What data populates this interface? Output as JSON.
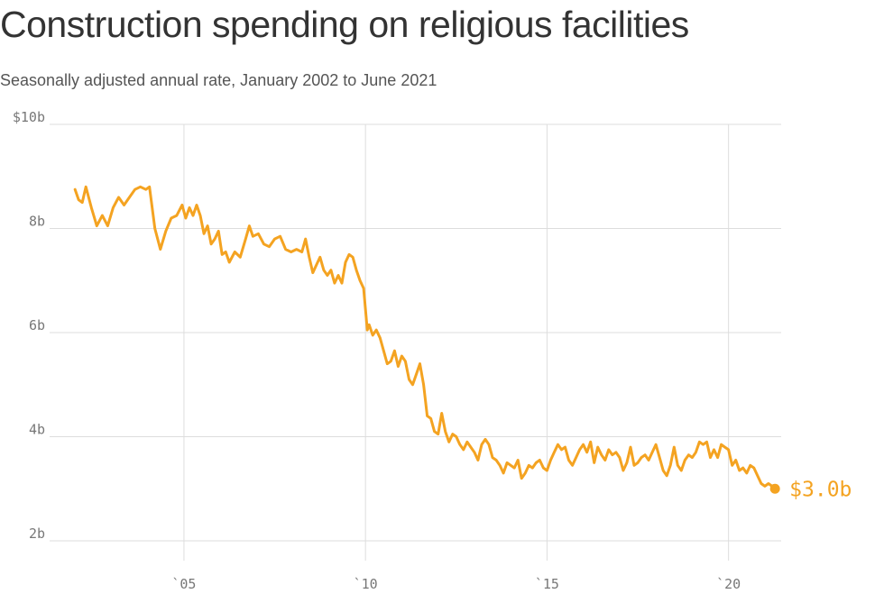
{
  "title": "Construction spending on religious facilities",
  "subtitle": "Seasonally adjusted annual rate, January 2002 to June 2021",
  "colors": {
    "line": "#f4a321",
    "grid": "#dddddd",
    "text": "#333333",
    "tick": "#777777"
  },
  "chart_data": {
    "type": "line",
    "title": "Construction spending on religious facilities",
    "subtitle": "Seasonally adjusted annual rate, January 2002 to June 2021",
    "xlabel": "",
    "ylabel": "",
    "xlim": [
      2001.3,
      2021.45
    ],
    "ylim": [
      1.8,
      10
    ],
    "y_ticks": [
      {
        "value": 10,
        "label": "$10b"
      },
      {
        "value": 8,
        "label": "8b"
      },
      {
        "value": 6,
        "label": "6b"
      },
      {
        "value": 4,
        "label": "4b"
      },
      {
        "value": 2,
        "label": "2b"
      }
    ],
    "x_ticks": [
      {
        "value": 2005,
        "label": "`05"
      },
      {
        "value": 2010,
        "label": "`10"
      },
      {
        "value": 2015,
        "label": "`15"
      },
      {
        "value": 2020,
        "label": "`20"
      }
    ],
    "grid": true,
    "end_label": "$3.0b",
    "series": [
      {
        "values": [
          [
            2002.0,
            8.75
          ],
          [
            2002.1,
            8.55
          ],
          [
            2002.2,
            8.5
          ],
          [
            2002.3,
            8.8
          ],
          [
            2002.45,
            8.4
          ],
          [
            2002.6,
            8.05
          ],
          [
            2002.75,
            8.25
          ],
          [
            2002.9,
            8.05
          ],
          [
            2003.05,
            8.4
          ],
          [
            2003.2,
            8.6
          ],
          [
            2003.35,
            8.45
          ],
          [
            2003.5,
            8.6
          ],
          [
            2003.65,
            8.75
          ],
          [
            2003.8,
            8.8
          ],
          [
            2003.95,
            8.75
          ],
          [
            2004.05,
            8.8
          ],
          [
            2004.2,
            8.0
          ],
          [
            2004.35,
            7.6
          ],
          [
            2004.5,
            7.95
          ],
          [
            2004.65,
            8.2
          ],
          [
            2004.8,
            8.25
          ],
          [
            2004.95,
            8.45
          ],
          [
            2005.05,
            8.2
          ],
          [
            2005.15,
            8.4
          ],
          [
            2005.25,
            8.25
          ],
          [
            2005.35,
            8.45
          ],
          [
            2005.45,
            8.25
          ],
          [
            2005.55,
            7.9
          ],
          [
            2005.65,
            8.05
          ],
          [
            2005.75,
            7.7
          ],
          [
            2005.85,
            7.8
          ],
          [
            2005.95,
            7.95
          ],
          [
            2006.05,
            7.5
          ],
          [
            2006.15,
            7.55
          ],
          [
            2006.25,
            7.35
          ],
          [
            2006.4,
            7.55
          ],
          [
            2006.55,
            7.45
          ],
          [
            2006.7,
            7.8
          ],
          [
            2006.8,
            8.05
          ],
          [
            2006.9,
            7.85
          ],
          [
            2007.05,
            7.9
          ],
          [
            2007.2,
            7.7
          ],
          [
            2007.35,
            7.65
          ],
          [
            2007.5,
            7.8
          ],
          [
            2007.65,
            7.85
          ],
          [
            2007.8,
            7.6
          ],
          [
            2007.95,
            7.55
          ],
          [
            2008.1,
            7.6
          ],
          [
            2008.25,
            7.55
          ],
          [
            2008.35,
            7.8
          ],
          [
            2008.45,
            7.45
          ],
          [
            2008.55,
            7.15
          ],
          [
            2008.65,
            7.3
          ],
          [
            2008.75,
            7.45
          ],
          [
            2008.85,
            7.2
          ],
          [
            2008.95,
            7.1
          ],
          [
            2009.05,
            7.2
          ],
          [
            2009.15,
            6.95
          ],
          [
            2009.25,
            7.1
          ],
          [
            2009.35,
            6.95
          ],
          [
            2009.45,
            7.35
          ],
          [
            2009.55,
            7.5
          ],
          [
            2009.65,
            7.45
          ],
          [
            2009.75,
            7.2
          ],
          [
            2009.85,
            7.0
          ],
          [
            2009.95,
            6.85
          ],
          [
            2010.05,
            6.05
          ],
          [
            2010.1,
            6.15
          ],
          [
            2010.2,
            5.95
          ],
          [
            2010.3,
            6.05
          ],
          [
            2010.4,
            5.9
          ],
          [
            2010.5,
            5.65
          ],
          [
            2010.6,
            5.4
          ],
          [
            2010.7,
            5.45
          ],
          [
            2010.8,
            5.65
          ],
          [
            2010.9,
            5.35
          ],
          [
            2011.0,
            5.55
          ],
          [
            2011.1,
            5.45
          ],
          [
            2011.2,
            5.1
          ],
          [
            2011.3,
            5.0
          ],
          [
            2011.4,
            5.2
          ],
          [
            2011.5,
            5.4
          ],
          [
            2011.6,
            5.0
          ],
          [
            2011.7,
            4.4
          ],
          [
            2011.8,
            4.35
          ],
          [
            2011.9,
            4.1
          ],
          [
            2012.0,
            4.05
          ],
          [
            2012.1,
            4.45
          ],
          [
            2012.2,
            4.1
          ],
          [
            2012.3,
            3.9
          ],
          [
            2012.4,
            4.05
          ],
          [
            2012.5,
            4.0
          ],
          [
            2012.6,
            3.85
          ],
          [
            2012.7,
            3.75
          ],
          [
            2012.8,
            3.9
          ],
          [
            2012.9,
            3.8
          ],
          [
            2013.0,
            3.7
          ],
          [
            2013.1,
            3.55
          ],
          [
            2013.2,
            3.85
          ],
          [
            2013.3,
            3.95
          ],
          [
            2013.4,
            3.85
          ],
          [
            2013.5,
            3.6
          ],
          [
            2013.6,
            3.55
          ],
          [
            2013.7,
            3.45
          ],
          [
            2013.8,
            3.3
          ],
          [
            2013.9,
            3.5
          ],
          [
            2014.0,
            3.45
          ],
          [
            2014.1,
            3.4
          ],
          [
            2014.2,
            3.55
          ],
          [
            2014.3,
            3.2
          ],
          [
            2014.4,
            3.3
          ],
          [
            2014.5,
            3.45
          ],
          [
            2014.6,
            3.4
          ],
          [
            2014.7,
            3.5
          ],
          [
            2014.8,
            3.55
          ],
          [
            2014.9,
            3.4
          ],
          [
            2015.0,
            3.35
          ],
          [
            2015.1,
            3.55
          ],
          [
            2015.2,
            3.7
          ],
          [
            2015.3,
            3.85
          ],
          [
            2015.4,
            3.75
          ],
          [
            2015.5,
            3.8
          ],
          [
            2015.6,
            3.55
          ],
          [
            2015.7,
            3.45
          ],
          [
            2015.8,
            3.6
          ],
          [
            2015.9,
            3.75
          ],
          [
            2016.0,
            3.85
          ],
          [
            2016.1,
            3.7
          ],
          [
            2016.2,
            3.9
          ],
          [
            2016.3,
            3.5
          ],
          [
            2016.4,
            3.8
          ],
          [
            2016.5,
            3.65
          ],
          [
            2016.6,
            3.55
          ],
          [
            2016.7,
            3.75
          ],
          [
            2016.8,
            3.65
          ],
          [
            2016.9,
            3.7
          ],
          [
            2017.0,
            3.6
          ],
          [
            2017.1,
            3.35
          ],
          [
            2017.2,
            3.5
          ],
          [
            2017.3,
            3.8
          ],
          [
            2017.4,
            3.45
          ],
          [
            2017.5,
            3.5
          ],
          [
            2017.6,
            3.6
          ],
          [
            2017.7,
            3.65
          ],
          [
            2017.8,
            3.55
          ],
          [
            2017.9,
            3.7
          ],
          [
            2018.0,
            3.85
          ],
          [
            2018.1,
            3.6
          ],
          [
            2018.2,
            3.35
          ],
          [
            2018.3,
            3.25
          ],
          [
            2018.4,
            3.45
          ],
          [
            2018.5,
            3.8
          ],
          [
            2018.6,
            3.45
          ],
          [
            2018.7,
            3.35
          ],
          [
            2018.8,
            3.55
          ],
          [
            2018.9,
            3.65
          ],
          [
            2019.0,
            3.6
          ],
          [
            2019.1,
            3.7
          ],
          [
            2019.2,
            3.9
          ],
          [
            2019.3,
            3.85
          ],
          [
            2019.4,
            3.9
          ],
          [
            2019.5,
            3.6
          ],
          [
            2019.6,
            3.75
          ],
          [
            2019.7,
            3.6
          ],
          [
            2019.8,
            3.85
          ],
          [
            2019.9,
            3.8
          ],
          [
            2020.0,
            3.75
          ],
          [
            2020.1,
            3.45
          ],
          [
            2020.2,
            3.55
          ],
          [
            2020.3,
            3.35
          ],
          [
            2020.4,
            3.4
          ],
          [
            2020.5,
            3.3
          ],
          [
            2020.6,
            3.45
          ],
          [
            2020.7,
            3.4
          ],
          [
            2020.8,
            3.25
          ],
          [
            2020.9,
            3.1
          ],
          [
            2021.0,
            3.05
          ],
          [
            2021.1,
            3.1
          ],
          [
            2021.2,
            3.05
          ],
          [
            2021.28,
            3.0
          ]
        ]
      }
    ]
  }
}
